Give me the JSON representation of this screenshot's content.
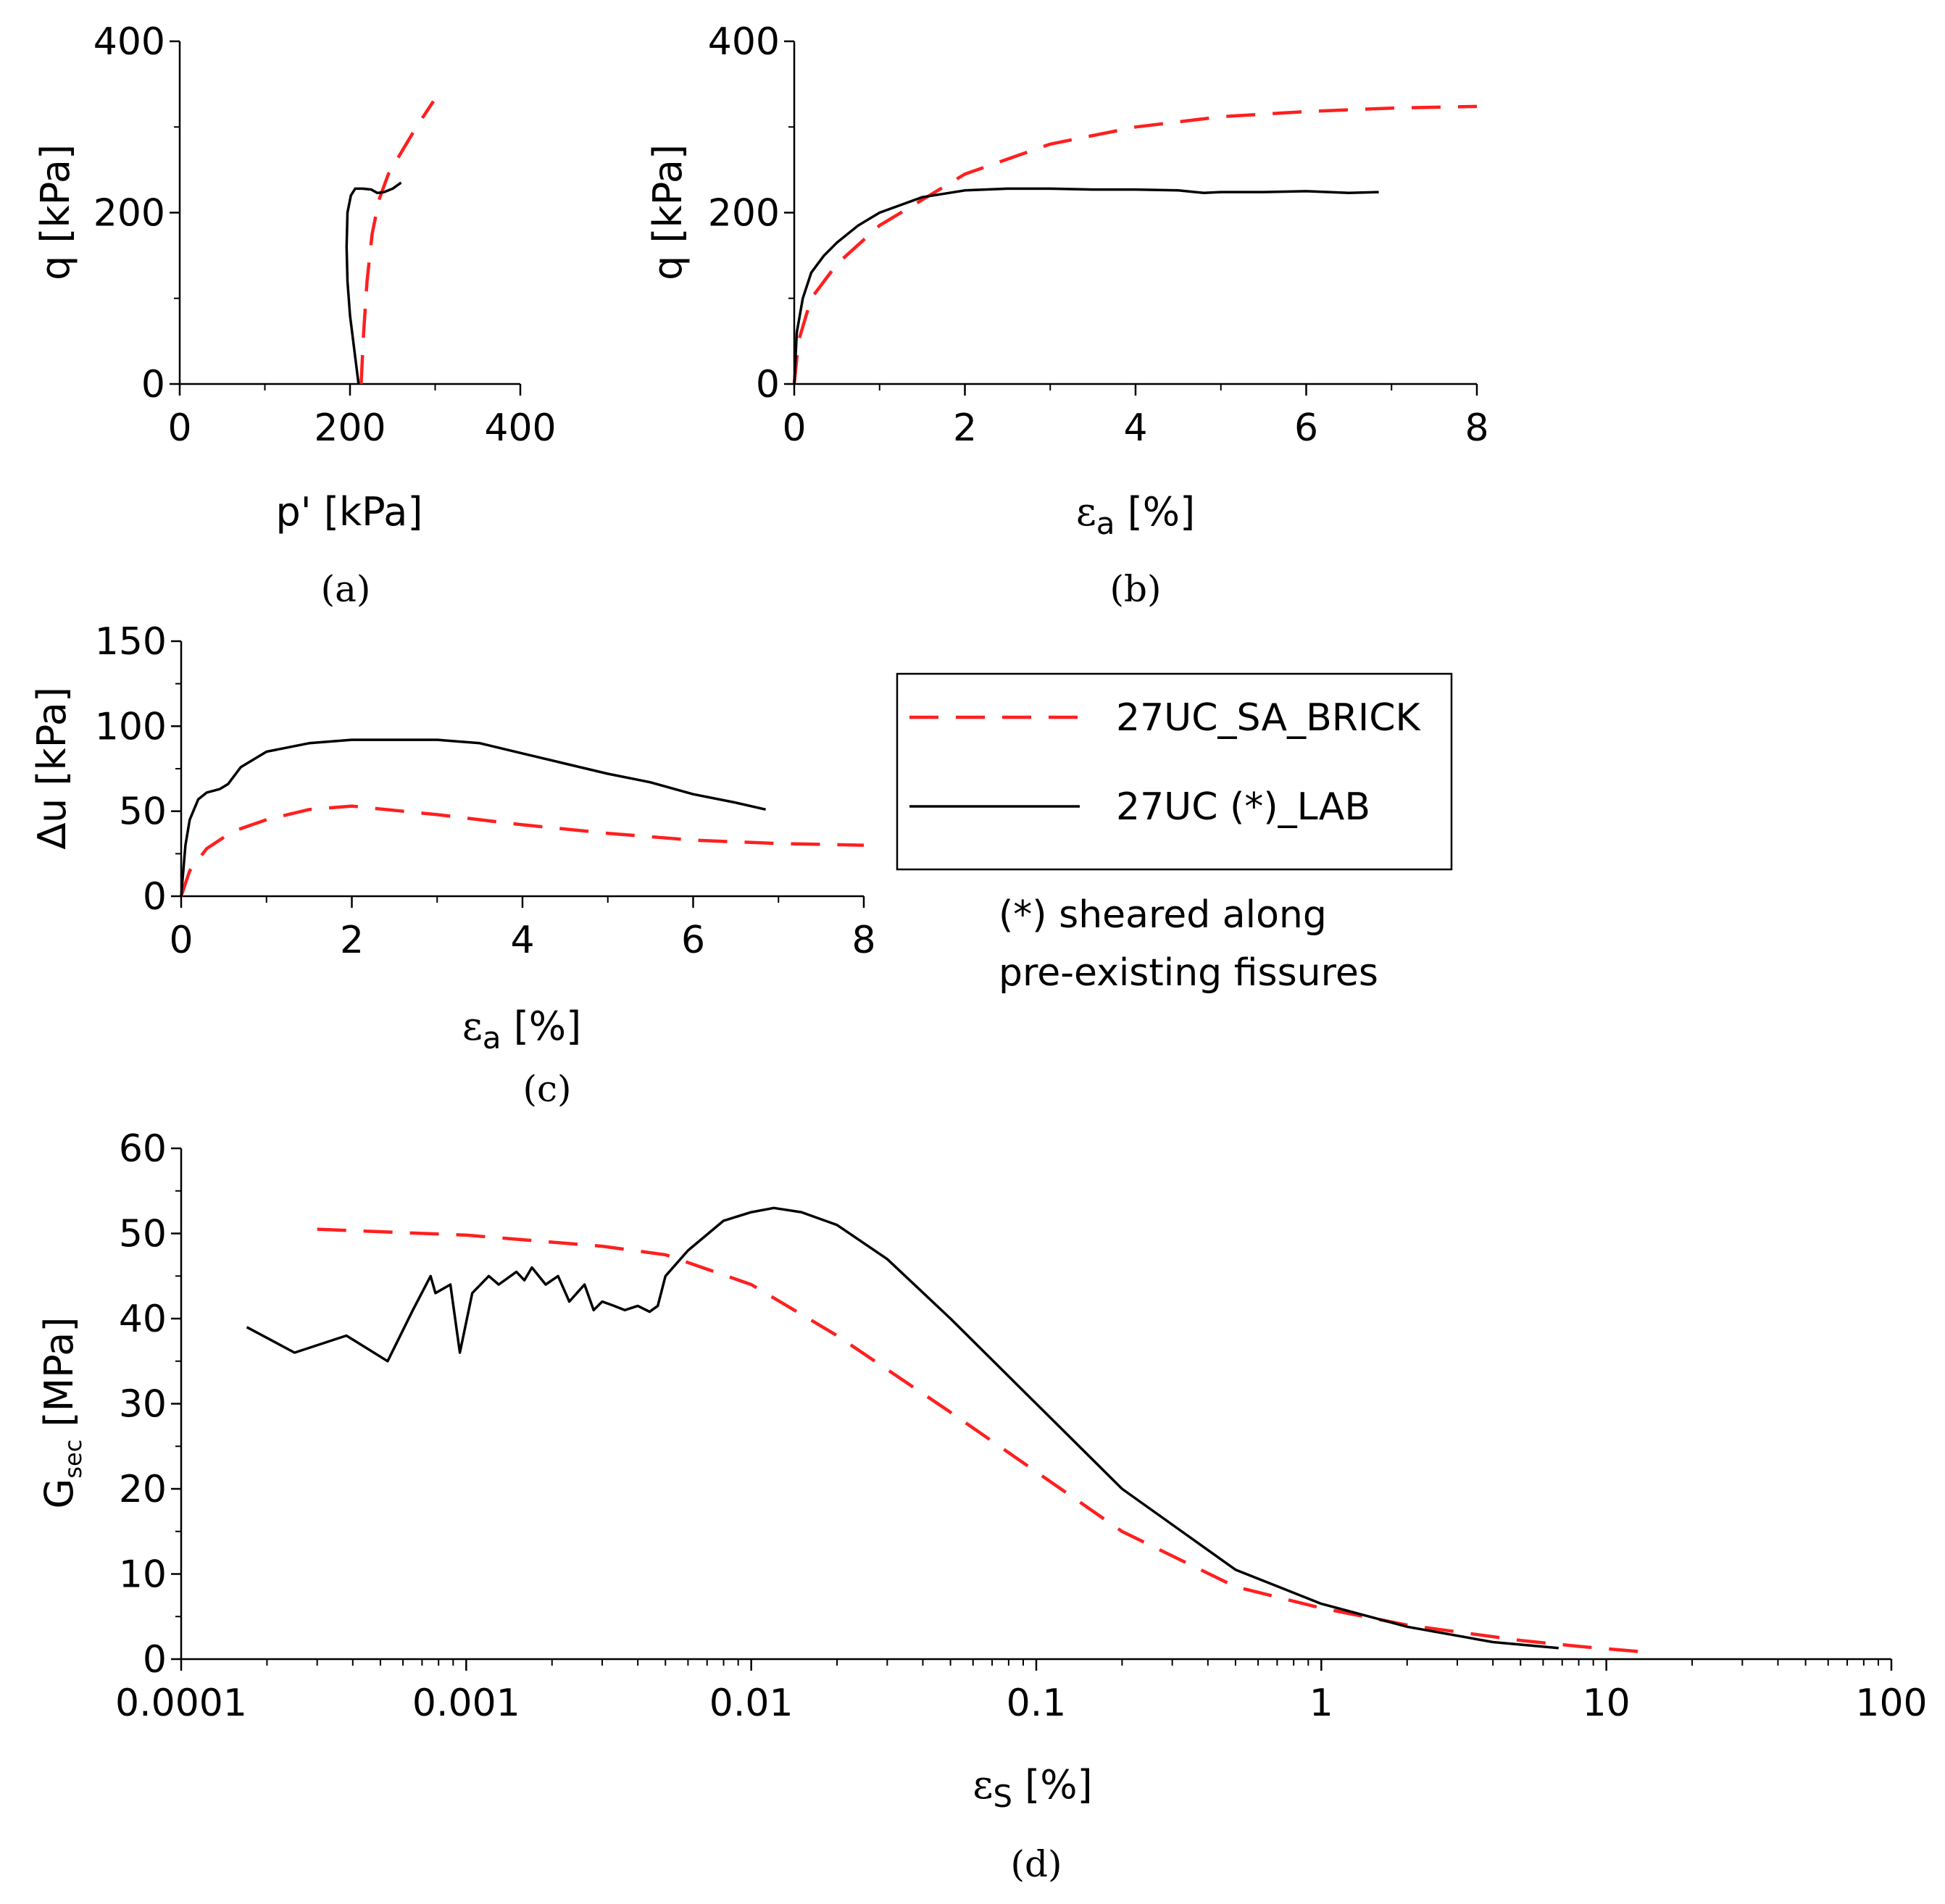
{
  "legend": {
    "entries": [
      {
        "label": "27UC_SA_BRICK",
        "style": "dashed",
        "color": "#ff1f1f"
      },
      {
        "label": "27UC (*)_LAB",
        "style": "solid",
        "color": "#000000"
      }
    ],
    "note_line1": "(*) sheared along",
    "note_line2": "pre-existing fissures"
  },
  "chart_data": [
    {
      "id": "a",
      "type": "line",
      "caption": "(a)",
      "xlabel": "p' [kPa]",
      "ylabel": "q [kPa]",
      "xlim": [
        0,
        400
      ],
      "ylim": [
        0,
        400
      ],
      "xticks": [
        0,
        200,
        400
      ],
      "yticks": [
        0,
        200,
        400
      ],
      "xticklabels": [
        "0",
        "200",
        "400"
      ],
      "yticklabels": [
        "0",
        "200",
        "400"
      ],
      "series": [
        {
          "name": "27UC_SA_BRICK",
          "style": "dashed",
          "x": [
            213,
            216,
            220,
            226,
            234,
            245,
            260,
            278,
            298
          ],
          "y": [
            0,
            60,
            120,
            175,
            215,
            245,
            270,
            300,
            330
          ]
        },
        {
          "name": "27UC (*)_LAB",
          "style": "solid",
          "x": [
            210,
            205,
            200,
            197,
            196,
            197,
            201,
            206,
            215,
            225,
            232,
            240,
            250,
            260
          ],
          "y": [
            0,
            40,
            80,
            120,
            160,
            200,
            220,
            228,
            228,
            227,
            223,
            224,
            228,
            235
          ]
        }
      ]
    },
    {
      "id": "b",
      "type": "line",
      "caption": "(b)",
      "xlabel": "εa [%]",
      "ylabel": "q [kPa]",
      "xlim": [
        0,
        8
      ],
      "ylim": [
        0,
        400
      ],
      "xticks": [
        0,
        2,
        4,
        6,
        8
      ],
      "yticks": [
        0,
        200,
        400
      ],
      "xticklabels": [
        "0",
        "2",
        "4",
        "6",
        "8"
      ],
      "yticklabels": [
        "0",
        "200",
        "400"
      ],
      "series": [
        {
          "name": "27UC_SA_BRICK",
          "style": "dashed",
          "x": [
            0,
            0.05,
            0.2,
            0.5,
            1,
            1.5,
            2,
            3,
            4,
            5,
            6,
            7,
            8
          ],
          "y": [
            0,
            50,
            100,
            140,
            185,
            215,
            245,
            280,
            300,
            312,
            318,
            322,
            324
          ]
        },
        {
          "name": "27UC (*)_LAB",
          "style": "solid",
          "x": [
            0,
            0.03,
            0.1,
            0.2,
            0.35,
            0.5,
            0.75,
            1,
            1.5,
            2,
            2.5,
            3,
            3.5,
            4,
            4.5,
            4.8,
            5,
            5.5,
            6,
            6.5,
            6.85
          ],
          "y": [
            0,
            60,
            100,
            130,
            150,
            165,
            185,
            200,
            218,
            226,
            228,
            228,
            227,
            227,
            226,
            223,
            224,
            224,
            225,
            223,
            224
          ]
        }
      ]
    },
    {
      "id": "c",
      "type": "line",
      "caption": "(c)",
      "xlabel": "εa [%]",
      "ylabel": "∆u [kPa]",
      "xlim": [
        0,
        8
      ],
      "ylim": [
        0,
        150
      ],
      "xticks": [
        0,
        2,
        4,
        6,
        8
      ],
      "yticks": [
        0,
        50,
        100,
        150
      ],
      "xticklabels": [
        "0",
        "2",
        "4",
        "6",
        "8"
      ],
      "yticklabels": [
        "0",
        "50",
        "100",
        "150"
      ],
      "series": [
        {
          "name": "27UC_SA_BRICK",
          "style": "dashed",
          "x": [
            0,
            0.1,
            0.3,
            0.6,
            1,
            1.5,
            2,
            3,
            4,
            5,
            6,
            7,
            8
          ],
          "y": [
            0,
            15,
            28,
            38,
            45,
            51,
            53,
            48,
            42,
            37,
            33,
            31,
            30
          ]
        },
        {
          "name": "27UC (*)_LAB",
          "style": "solid",
          "x": [
            0,
            0.05,
            0.1,
            0.2,
            0.3,
            0.45,
            0.55,
            0.7,
            1,
            1.5,
            2,
            2.5,
            3,
            3.5,
            4,
            4.5,
            5,
            5.5,
            6,
            6.5,
            6.85
          ],
          "y": [
            0,
            30,
            45,
            57,
            61,
            63,
            66,
            76,
            85,
            90,
            92,
            92,
            92,
            90,
            84,
            78,
            72,
            67,
            60,
            55,
            51
          ]
        }
      ]
    },
    {
      "id": "d",
      "type": "line",
      "caption": "(d)",
      "xlabel": "εs [%]",
      "ylabel": "Gsec [MPa]",
      "xscale": "log",
      "xlim": [
        0.0001,
        100
      ],
      "ylim": [
        0,
        60
      ],
      "xticks": [
        0.0001,
        0.001,
        0.01,
        0.1,
        1,
        10,
        100
      ],
      "yticks": [
        0,
        10,
        20,
        30,
        40,
        50,
        60
      ],
      "xticklabels": [
        "0.0001",
        "0.001",
        "0.01",
        "0.1",
        "1",
        "10",
        "100"
      ],
      "yticklabels": [
        "0",
        "10",
        "20",
        "30",
        "40",
        "50",
        "60"
      ],
      "series": [
        {
          "name": "27UC_SA_BRICK",
          "style": "dashed",
          "x": [
            0.0003,
            0.001,
            0.003,
            0.005,
            0.01,
            0.02,
            0.05,
            0.1,
            0.2,
            0.5,
            1,
            2,
            5,
            8,
            14
          ],
          "y": [
            50.5,
            49.8,
            48.5,
            47.5,
            44,
            38,
            29,
            22,
            15,
            8.5,
            6,
            4,
            2.2,
            1.5,
            0.8
          ]
        },
        {
          "name": "27UC (*)_LAB",
          "style": "solid",
          "x": [
            0.00017,
            0.00025,
            0.00038,
            0.00053,
            0.00065,
            0.00075,
            0.00078,
            0.00088,
            0.00095,
            0.00105,
            0.0012,
            0.0013,
            0.0015,
            0.0016,
            0.0017,
            0.0019,
            0.0021,
            0.0023,
            0.0026,
            0.0028,
            0.003,
            0.0033,
            0.0036,
            0.004,
            0.0044,
            0.0047,
            0.005,
            0.006,
            0.008,
            0.01,
            0.012,
            0.015,
            0.02,
            0.03,
            0.05,
            0.1,
            0.2,
            0.5,
            1,
            2,
            4,
            6.8
          ],
          "y": [
            39,
            36,
            38,
            35,
            41,
            45,
            43,
            44,
            36,
            43,
            45,
            44,
            45.5,
            44.5,
            46,
            44,
            45,
            42,
            44,
            41,
            42,
            41.5,
            41,
            41.5,
            40.8,
            41.5,
            45,
            48,
            51.5,
            52.5,
            53,
            52.5,
            51,
            47,
            40,
            30,
            20,
            10.5,
            6.5,
            3.8,
            2,
            1.3
          ]
        }
      ]
    }
  ]
}
